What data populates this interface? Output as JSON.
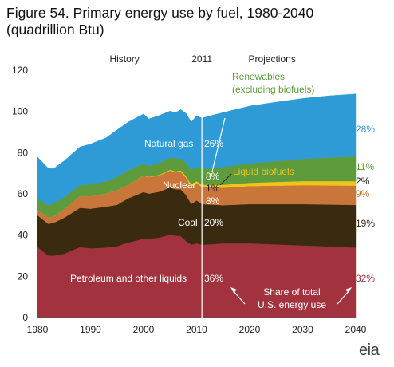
{
  "title": "Figure 54. Primary energy use by fuel, 1980-2040\n(quadrillion Btu)",
  "logo_text": "eia",
  "chart_data": {
    "type": "area",
    "stacked": true,
    "title": "Figure 54. Primary energy use by fuel, 1980-2040",
    "ylabel": "quadrillion Btu",
    "xlim": [
      1980,
      2040
    ],
    "ylim": [
      0,
      120
    ],
    "x_ticks": [
      1980,
      1990,
      2000,
      2010,
      2020,
      2030,
      2040
    ],
    "y_ticks": [
      0,
      20,
      40,
      60,
      80,
      100,
      120
    ],
    "divider_year": 2011,
    "period_labels": {
      "history": "History",
      "divider": "2011",
      "projections": "Projections"
    },
    "x": [
      1980,
      1982,
      1983,
      1985,
      1988,
      1990,
      1993,
      1995,
      1997,
      2000,
      2001,
      2003,
      2005,
      2006,
      2007,
      2008,
      2009,
      2010,
      2011,
      2015,
      2020,
      2025,
      2030,
      2035,
      2040
    ],
    "series": [
      {
        "name": "Petroleum and other liquids",
        "color": "#a3323f",
        "values": [
          34.2,
          30.2,
          30.0,
          30.9,
          34.2,
          33.6,
          34.0,
          34.6,
          36.3,
          38.3,
          38.2,
          38.8,
          40.3,
          39.8,
          39.5,
          37.1,
          35.4,
          36.0,
          35.3,
          36.0,
          36.0,
          35.5,
          35.0,
          34.5,
          34.0
        ]
      },
      {
        "name": "Coal",
        "color": "#3a2a10",
        "values": [
          15.4,
          15.3,
          15.9,
          17.5,
          19.0,
          19.2,
          19.8,
          20.1,
          21.4,
          22.6,
          21.9,
          22.3,
          22.8,
          22.4,
          22.7,
          22.4,
          19.7,
          20.8,
          19.7,
          18.5,
          19.0,
          19.5,
          20.0,
          20.3,
          20.6
        ]
      },
      {
        "name": "Nuclear",
        "color": "#c8763a",
        "values": [
          2.7,
          3.1,
          3.2,
          4.1,
          5.7,
          6.1,
          6.4,
          7.1,
          6.6,
          7.9,
          8.0,
          7.9,
          8.2,
          8.2,
          8.5,
          8.4,
          8.4,
          8.4,
          8.3,
          8.5,
          8.8,
          9.0,
          9.2,
          9.3,
          9.4
        ]
      },
      {
        "name": "Liquid biofuels",
        "color": "#f2c318",
        "values": [
          0.0,
          0.0,
          0.0,
          0.0,
          0.0,
          0.0,
          0.0,
          0.0,
          0.0,
          0.1,
          0.2,
          0.3,
          0.4,
          0.5,
          0.6,
          0.8,
          0.9,
          1.0,
          1.1,
          1.4,
          1.6,
          1.8,
          2.0,
          2.1,
          2.2
        ]
      },
      {
        "name": "Renewables (excluding biofuels)",
        "color": "#5e9b3c",
        "values": [
          5.4,
          5.9,
          6.3,
          5.8,
          5.3,
          5.7,
          5.9,
          6.5,
          7.0,
          5.9,
          5.2,
          5.8,
          5.9,
          6.3,
          5.9,
          6.6,
          7.1,
          7.1,
          7.6,
          8.6,
          9.4,
          10.1,
          10.8,
          11.4,
          12.0
        ]
      },
      {
        "name": "Natural gas",
        "color": "#2e9ad6",
        "values": [
          20.2,
          18.0,
          16.8,
          17.7,
          18.6,
          19.6,
          21.2,
          22.8,
          23.4,
          24.0,
          22.9,
          23.0,
          22.6,
          22.2,
          23.7,
          23.8,
          23.4,
          24.6,
          24.8,
          26.5,
          27.8,
          28.6,
          29.3,
          30.0,
          30.3
        ]
      }
    ],
    "annotations": {
      "renewables_label": "Renewables\n(excluding biofuels)",
      "liquid_biofuels_label": "Liquid biofuels",
      "natural_gas_label": "Natural gas",
      "nuclear_label": "Nuclear",
      "coal_label": "Coal",
      "petroleum_label": "Petroleum and other liquids",
      "share_note": "Share of total\nU.S. energy use",
      "share_2011": {
        "natural_gas": "26%",
        "renewables": "8%",
        "liquid_biofuels": "1%",
        "nuclear": "8%",
        "coal": "20%",
        "petroleum": "36%"
      },
      "share_2040": {
        "natural_gas": "28%",
        "renewables": "11%",
        "liquid_biofuels": "2%",
        "nuclear": "9%",
        "coal": "19%",
        "petroleum": "32%"
      }
    }
  }
}
